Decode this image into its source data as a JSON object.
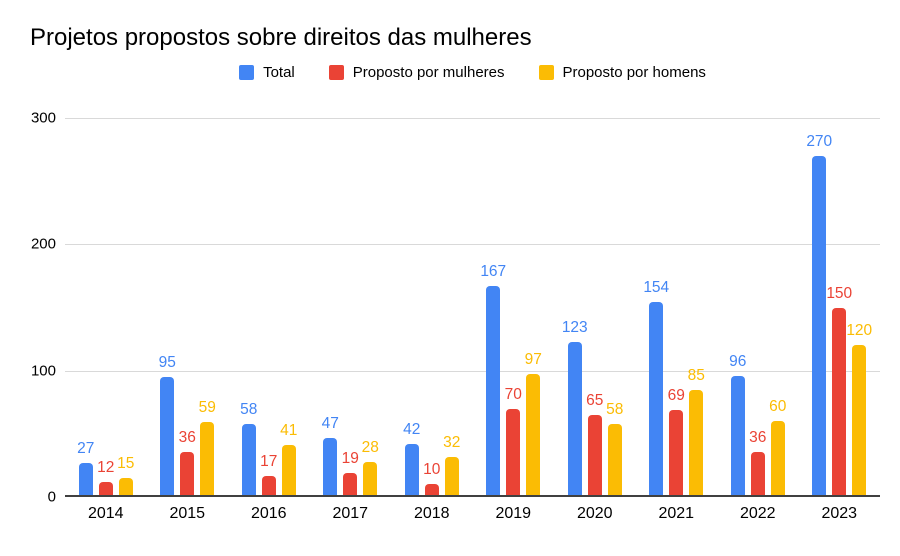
{
  "title": "Projetos propostos sobre direitos das mulheres",
  "legend": [
    {
      "label": "Total",
      "color": "#4285F4"
    },
    {
      "label": "Proposto por mulheres",
      "color": "#EA4335"
    },
    {
      "label": "Proposto por homens",
      "color": "#FBBC04"
    }
  ],
  "chart_data": {
    "type": "bar",
    "title": "Projetos propostos sobre direitos das mulheres",
    "categories": [
      "2014",
      "2015",
      "2016",
      "2017",
      "2018",
      "2019",
      "2020",
      "2021",
      "2022",
      "2023"
    ],
    "series": [
      {
        "name": "Total",
        "color": "#4285F4",
        "values": [
          27,
          95,
          58,
          47,
          42,
          167,
          123,
          154,
          96,
          270
        ]
      },
      {
        "name": "Proposto por mulheres",
        "color": "#EA4335",
        "values": [
          12,
          36,
          17,
          19,
          10,
          70,
          65,
          69,
          36,
          150
        ]
      },
      {
        "name": "Proposto por homens",
        "color": "#FBBC04",
        "values": [
          15,
          59,
          41,
          28,
          32,
          97,
          58,
          85,
          60,
          120
        ]
      }
    ],
    "xlabel": "",
    "ylabel": "",
    "ylim": [
      0,
      300
    ],
    "yticks": [
      0,
      100,
      200,
      300
    ],
    "grid": true,
    "grid_color": "#d9d9d9",
    "baseline_color": "#404040",
    "legend_position": "top",
    "data_labels": true
  }
}
